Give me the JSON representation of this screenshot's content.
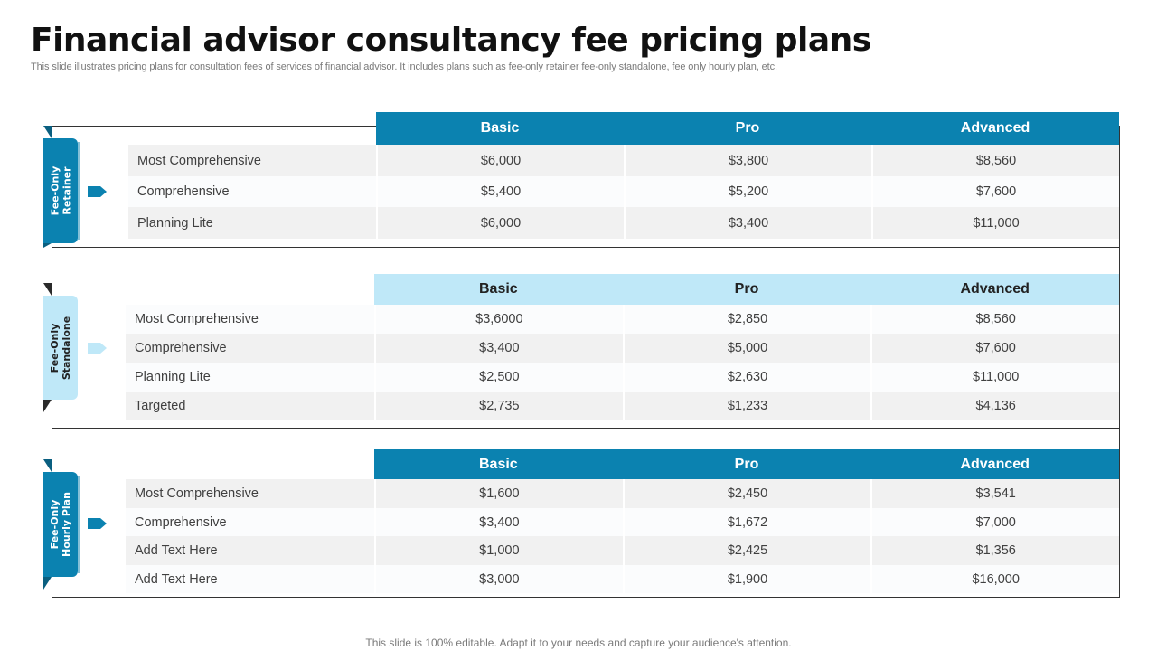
{
  "title": "Financial advisor consultancy fee pricing plans",
  "subtitle": "This slide illustrates pricing plans for consultation fees of services of financial advisor. It includes plans such as fee-only retainer fee-only standalone, fee only hourly plan, etc.",
  "footer": "This slide is 100% editable. Adapt it to your needs and capture your audience's attention.",
  "colors": {
    "accent_dark": "#0b82b0",
    "accent_light": "#bfe8f8",
    "row_shade": "#f1f1f1"
  },
  "sections": [
    {
      "tab": [
        "Fee-Only",
        "Retainer"
      ],
      "headers": [
        "Basic",
        "Pro",
        "Advanced"
      ],
      "rows": [
        {
          "label": "Most Comprehensive",
          "values": [
            "$6,000",
            "$3,800",
            "$8,560"
          ]
        },
        {
          "label": "Comprehensive",
          "values": [
            "$5,400",
            "$5,200",
            "$7,600"
          ]
        },
        {
          "label": "Planning Lite",
          "values": [
            "$6,000",
            "$3,400",
            "$11,000"
          ]
        }
      ]
    },
    {
      "tab": [
        "Fee-Only",
        "Standalone"
      ],
      "headers": [
        "Basic",
        "Pro",
        "Advanced"
      ],
      "rows": [
        {
          "label": "Most Comprehensive",
          "values": [
            "$3,6000",
            "$2,850",
            "$8,560"
          ]
        },
        {
          "label": "Comprehensive",
          "values": [
            "$3,400",
            "$5,000",
            "$7,600"
          ]
        },
        {
          "label": "Planning Lite",
          "values": [
            "$2,500",
            "$2,630",
            "$11,000"
          ]
        },
        {
          "label": "Targeted",
          "values": [
            "$2,735",
            "$1,233",
            "$4,136"
          ]
        }
      ]
    },
    {
      "tab": [
        "Fee-Only",
        "Hourly Plan"
      ],
      "headers": [
        "Basic",
        "Pro",
        "Advanced"
      ],
      "rows": [
        {
          "label": "Most Comprehensive",
          "values": [
            "$1,600",
            "$2,450",
            "$3,541"
          ]
        },
        {
          "label": "Comprehensive",
          "values": [
            "$3,400",
            "$1,672",
            "$7,000"
          ]
        },
        {
          "label": "Add Text Here",
          "values": [
            "$1,000",
            "$2,425",
            "$1,356"
          ]
        },
        {
          "label": "Add Text Here",
          "values": [
            "$3,000",
            "$1,900",
            "$16,000"
          ]
        }
      ]
    }
  ]
}
